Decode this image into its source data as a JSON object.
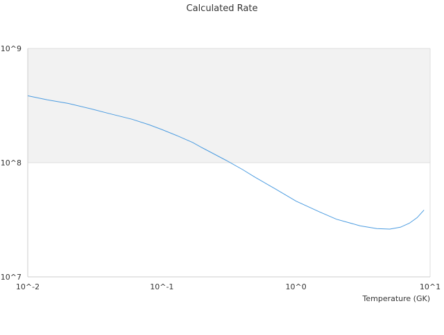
{
  "chart_data": {
    "type": "line",
    "title": "Calculated Rate",
    "xlabel": "Temperature (GK)",
    "ylabel": "",
    "xscale": "log",
    "yscale": "log",
    "xlim": [
      0.01,
      10
    ],
    "ylim": [
      10000000,
      1000000000
    ],
    "grid": true,
    "x_tick_labels": [
      "10^-2",
      "10^-1",
      "10^0",
      "10^1"
    ],
    "y_tick_labels": [
      "10^7",
      "10^8",
      "10^9"
    ],
    "colors": {
      "line": "#4a9be0",
      "band": "#f2f2f2",
      "grid": "#dddddd",
      "axis": "#cccccc",
      "text": "#333333"
    },
    "series": [
      {
        "x": [
          0.01,
          0.014,
          0.02,
          0.03,
          0.04,
          0.06,
          0.08,
          0.1,
          0.13,
          0.17,
          0.2,
          0.3,
          0.4,
          0.5,
          0.7,
          1.0,
          1.5,
          2.0,
          3.0,
          4.0,
          5.0,
          6.0,
          7.0,
          8.0,
          9.0
        ],
        "y": [
          385000000,
          355000000,
          330000000,
          295000000,
          270000000,
          240000000,
          215000000,
          195000000,
          172000000,
          150000000,
          135000000,
          105000000,
          87000000,
          74000000,
          59000000,
          46000000,
          37000000,
          32000000,
          28000000,
          26500000,
          26200000,
          27200000,
          29500000,
          33000000,
          38500000
        ]
      }
    ]
  }
}
